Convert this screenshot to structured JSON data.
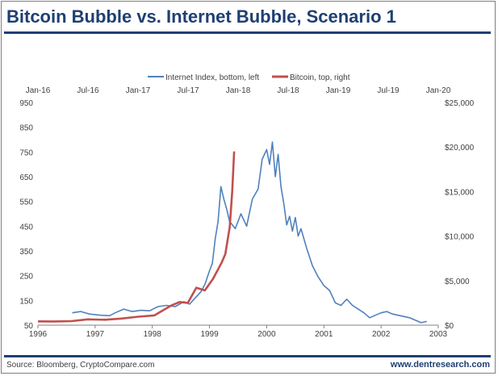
{
  "header": {
    "title": "Bitcoin Bubble vs. Internet Bubble, Scenario 1"
  },
  "footer": {
    "source": "Source: Bloomberg, CryptoCompare.com",
    "site": "www.dentresearch.com"
  },
  "colors": {
    "title": "#1f3f73",
    "internet": "#4f81bd",
    "bitcoin": "#c0504d",
    "text": "#404040"
  },
  "chart_data": {
    "type": "line",
    "title": "Bitcoin Bubble vs. Internet Bubble, Scenario 1",
    "legend_position": "top-center",
    "grid": false,
    "axes": {
      "bottom": {
        "ticks": [
          "1996",
          "1997",
          "1998",
          "1999",
          "2000",
          "2001",
          "2002",
          "2003"
        ],
        "range": [
          1996,
          2003
        ]
      },
      "left": {
        "ticks": [
          "50",
          "150",
          "250",
          "350",
          "450",
          "550",
          "650",
          "750",
          "850",
          "950"
        ],
        "range": [
          50,
          950
        ]
      },
      "top": {
        "ticks": [
          "Jan-16",
          "Jul-16",
          "Jan-17",
          "Jul-17",
          "Jan-18",
          "Jul-18",
          "Jan-19",
          "Jul-19",
          "Jan-20"
        ],
        "range": [
          "2016-01-01",
          "2020-01-01"
        ]
      },
      "right": {
        "ticks": [
          "$0",
          "$5,000",
          "$10,000",
          "$15,000",
          "$20,000",
          "$25,000"
        ],
        "range": [
          0,
          25000
        ]
      }
    },
    "series": [
      {
        "name": "Internet Index, bottom, left",
        "axes": "bottom-left",
        "color": "#4f81bd",
        "x": [
          1996.6,
          1996.75,
          1996.9,
          1997.1,
          1997.25,
          1997.35,
          1997.5,
          1997.65,
          1997.8,
          1997.95,
          1998.1,
          1998.25,
          1998.4,
          1998.55,
          1998.65,
          1998.75,
          1998.85,
          1998.92,
          1999.0,
          1999.05,
          1999.1,
          1999.15,
          1999.2,
          1999.25,
          1999.3,
          1999.35,
          1999.45,
          1999.55,
          1999.65,
          1999.75,
          1999.85,
          1999.92,
          2000.0,
          2000.05,
          2000.1,
          2000.15,
          2000.2,
          2000.25,
          2000.3,
          2000.35,
          2000.4,
          2000.45,
          2000.5,
          2000.55,
          2000.6,
          2000.7,
          2000.8,
          2000.9,
          2001.0,
          2001.1,
          2001.2,
          2001.3,
          2001.4,
          2001.5,
          2001.6,
          2001.7,
          2001.8,
          2001.9,
          2002.0,
          2002.1,
          2002.2,
          2002.3,
          2002.4,
          2002.5,
          2002.6,
          2002.7,
          2002.8
        ],
        "y": [
          100,
          105,
          95,
          90,
          88,
          100,
          115,
          105,
          110,
          108,
          125,
          130,
          125,
          145,
          135,
          160,
          185,
          215,
          270,
          300,
          400,
          470,
          610,
          560,
          520,
          470,
          440,
          500,
          450,
          560,
          600,
          720,
          760,
          700,
          790,
          650,
          740,
          610,
          540,
          455,
          490,
          430,
          485,
          410,
          440,
          360,
          290,
          245,
          210,
          190,
          140,
          130,
          155,
          130,
          115,
          100,
          80,
          90,
          100,
          105,
          95,
          90,
          85,
          80,
          70,
          60,
          65
        ]
      },
      {
        "name": "Bitcoin, top, right",
        "axes": "top-right",
        "color": "#c0504d",
        "x": [
          "2016-01-01",
          "2016-03-01",
          "2016-05-01",
          "2016-07-01",
          "2016-09-01",
          "2016-11-01",
          "2017-01-01",
          "2017-03-01",
          "2017-05-01",
          "2017-06-01",
          "2017-07-01",
          "2017-08-01",
          "2017-09-01",
          "2017-10-01",
          "2017-11-01",
          "2017-11-15",
          "2017-12-01",
          "2017-12-10",
          "2017-12-17"
        ],
        "y": [
          430,
          420,
          450,
          650,
          610,
          740,
          950,
          1100,
          2200,
          2600,
          2500,
          4200,
          3900,
          5200,
          7000,
          8000,
          11000,
          15000,
          19500
        ]
      }
    ]
  }
}
